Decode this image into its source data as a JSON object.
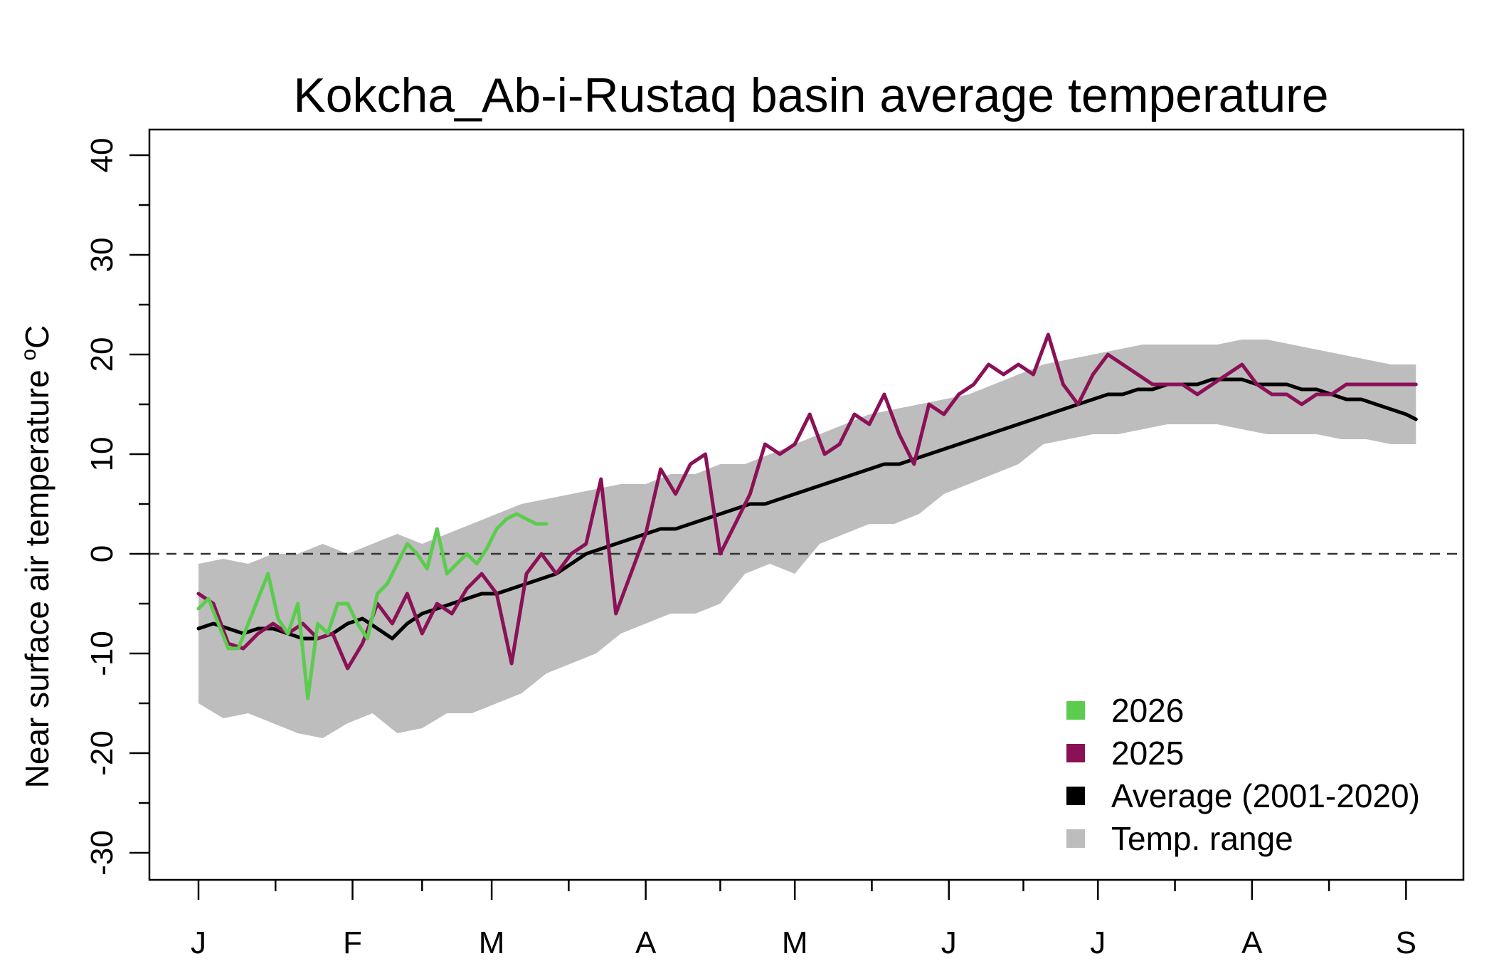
{
  "chart_data": {
    "type": "line",
    "title": "Kokcha_Ab-i-Rustaq basin average temperature",
    "ylabel_main": "Near surface air temperature ",
    "ylabel_sup": "o",
    "ylabel_unit": "C",
    "xlabel": "",
    "ylim": [
      -32,
      42
    ],
    "y_ticks": [
      -30,
      -20,
      -10,
      0,
      10,
      20,
      30,
      40
    ],
    "y_tick_labels": [
      "-30",
      "-20",
      "-10",
      "0",
      "10",
      "20",
      "30",
      "40"
    ],
    "x_range_days": [
      0,
      245
    ],
    "x_month_ticks": [
      0,
      31,
      59,
      90,
      120,
      151,
      181,
      212,
      243
    ],
    "x_month_labels": [
      "J",
      "F",
      "M",
      "A",
      "M",
      "J",
      "J",
      "A",
      "S"
    ],
    "reference_line_y": 0,
    "legend": [
      {
        "label": "2026",
        "color": "#5ccc4e",
        "kind": "line"
      },
      {
        "label": "2025",
        "color": "#8b1157",
        "kind": "line"
      },
      {
        "label": "Average (2001-2020)",
        "color": "#000000",
        "kind": "line"
      },
      {
        "label": "Temp. range",
        "color": "#bdbdbd",
        "kind": "band"
      }
    ],
    "range_band": {
      "name": "Temp. range",
      "color": "#bdbdbd",
      "x": [
        0,
        5,
        10,
        15,
        20,
        25,
        30,
        35,
        40,
        45,
        50,
        55,
        60,
        65,
        70,
        75,
        80,
        85,
        90,
        95,
        100,
        105,
        110,
        115,
        120,
        125,
        130,
        135,
        140,
        145,
        150,
        155,
        160,
        165,
        170,
        175,
        180,
        185,
        190,
        195,
        200,
        205,
        210,
        215,
        220,
        225,
        230,
        235,
        240,
        245
      ],
      "lower": [
        -15,
        -16.5,
        -16,
        -17,
        -18,
        -18.5,
        -17,
        -16,
        -18,
        -17.5,
        -16,
        -16,
        -15,
        -14,
        -12,
        -11,
        -10,
        -8,
        -7,
        -6,
        -6,
        -5,
        -2,
        -1,
        -2,
        1,
        2,
        3,
        3,
        4,
        6,
        7,
        8,
        9,
        11,
        11.5,
        12,
        12,
        12.5,
        13,
        13,
        13,
        12.5,
        12,
        12,
        12,
        11.5,
        11.5,
        11,
        11
      ],
      "upper": [
        -1,
        -0.5,
        -1,
        0,
        0,
        1,
        0,
        1,
        2,
        1,
        2,
        3,
        4,
        5,
        5.5,
        6,
        6.5,
        7,
        7,
        8,
        8,
        9,
        9,
        10,
        11,
        12,
        13,
        14,
        14.5,
        15,
        15.5,
        16,
        17,
        18,
        19,
        19.5,
        20,
        20.5,
        21,
        21,
        21,
        21,
        21.5,
        21.5,
        21,
        20.5,
        20,
        19.5,
        19,
        19
      ]
    },
    "series": [
      {
        "name": "Average (2001-2020)",
        "color": "#000000",
        "x": [
          0,
          3,
          6,
          9,
          12,
          15,
          18,
          21,
          24,
          27,
          30,
          33,
          36,
          39,
          42,
          45,
          48,
          51,
          54,
          57,
          60,
          63,
          66,
          69,
          72,
          75,
          78,
          81,
          84,
          87,
          90,
          93,
          96,
          99,
          102,
          105,
          108,
          111,
          114,
          117,
          120,
          123,
          126,
          129,
          132,
          135,
          138,
          141,
          144,
          147,
          150,
          153,
          156,
          159,
          162,
          165,
          168,
          171,
          174,
          177,
          180,
          183,
          186,
          189,
          192,
          195,
          198,
          201,
          204,
          207,
          210,
          213,
          216,
          219,
          222,
          225,
          228,
          231,
          234,
          237,
          240,
          243,
          245
        ],
        "y": [
          -7.5,
          -7,
          -7.5,
          -8,
          -7.5,
          -7.5,
          -8,
          -8.5,
          -8.5,
          -8,
          -7,
          -6.5,
          -7.5,
          -8.5,
          -7,
          -6,
          -5.5,
          -5,
          -4.5,
          -4,
          -4,
          -3.5,
          -3,
          -2.5,
          -2,
          -1,
          0,
          0.5,
          1,
          1.5,
          2,
          2.5,
          2.5,
          3,
          3.5,
          4,
          4.5,
          5,
          5,
          5.5,
          6,
          6.5,
          7,
          7.5,
          8,
          8.5,
          9,
          9,
          9.5,
          10,
          10.5,
          11,
          11.5,
          12,
          12.5,
          13,
          13.5,
          14,
          14.5,
          15,
          15.5,
          16,
          16,
          16.5,
          16.5,
          17,
          17,
          17,
          17.5,
          17.5,
          17.5,
          17,
          17,
          17,
          16.5,
          16.5,
          16,
          15.5,
          15.5,
          15,
          14.5,
          14,
          13.5
        ]
      },
      {
        "name": "2025",
        "color": "#8b1157",
        "x": [
          0,
          3,
          6,
          9,
          12,
          15,
          18,
          21,
          24,
          27,
          30,
          33,
          36,
          39,
          42,
          45,
          48,
          51,
          54,
          57,
          60,
          63,
          66,
          69,
          72,
          75,
          78,
          81,
          84,
          87,
          90,
          93,
          96,
          99,
          102,
          105,
          108,
          111,
          114,
          117,
          120,
          123,
          126,
          129,
          132,
          135,
          138,
          141,
          144,
          147,
          150,
          153,
          156,
          159,
          162,
          165,
          168,
          171,
          174,
          177,
          180,
          183,
          186,
          189,
          192,
          195,
          198,
          201,
          204,
          207,
          210,
          213,
          216,
          219,
          222,
          225,
          228,
          231,
          234,
          237,
          240,
          243,
          245
        ],
        "y": [
          -4,
          -5,
          -9,
          -9.5,
          -8,
          -7,
          -8,
          -7,
          -8.5,
          -8,
          -11.5,
          -9,
          -5,
          -7,
          -4,
          -8,
          -5,
          -6,
          -3.5,
          -2,
          -4,
          -11,
          -2,
          0,
          -2,
          0,
          1,
          7.5,
          -6,
          -2,
          2,
          8.5,
          6,
          9,
          10,
          0,
          3,
          6,
          11,
          10,
          11,
          14,
          10,
          11,
          14,
          13,
          16,
          12,
          9,
          15,
          14,
          16,
          17,
          19,
          18,
          19,
          18,
          22,
          17,
          15,
          18,
          20,
          19,
          18,
          17,
          17,
          17,
          16,
          17,
          18,
          19,
          17,
          16,
          16,
          15,
          16,
          16,
          17,
          17,
          17,
          17,
          17,
          17
        ]
      },
      {
        "name": "2026",
        "color": "#5ccc4e",
        "x": [
          0,
          2,
          4,
          6,
          8,
          10,
          12,
          14,
          16,
          18,
          20,
          22,
          24,
          26,
          28,
          30,
          32,
          34,
          36,
          38,
          40,
          42,
          44,
          46,
          48,
          50,
          52,
          54,
          56,
          58,
          60,
          62,
          64,
          66,
          68,
          70
        ],
        "y": [
          -5.5,
          -4.5,
          -7,
          -9.5,
          -9.5,
          -7,
          -4.5,
          -2,
          -6.5,
          -8,
          -5,
          -14.5,
          -7,
          -8,
          -5,
          -5,
          -7,
          -8.5,
          -4,
          -3,
          -1,
          1,
          0,
          -1.5,
          2.5,
          -2,
          -1,
          0,
          -1,
          0.5,
          2.5,
          3.5,
          4,
          3.5,
          3,
          3
        ]
      }
    ]
  }
}
